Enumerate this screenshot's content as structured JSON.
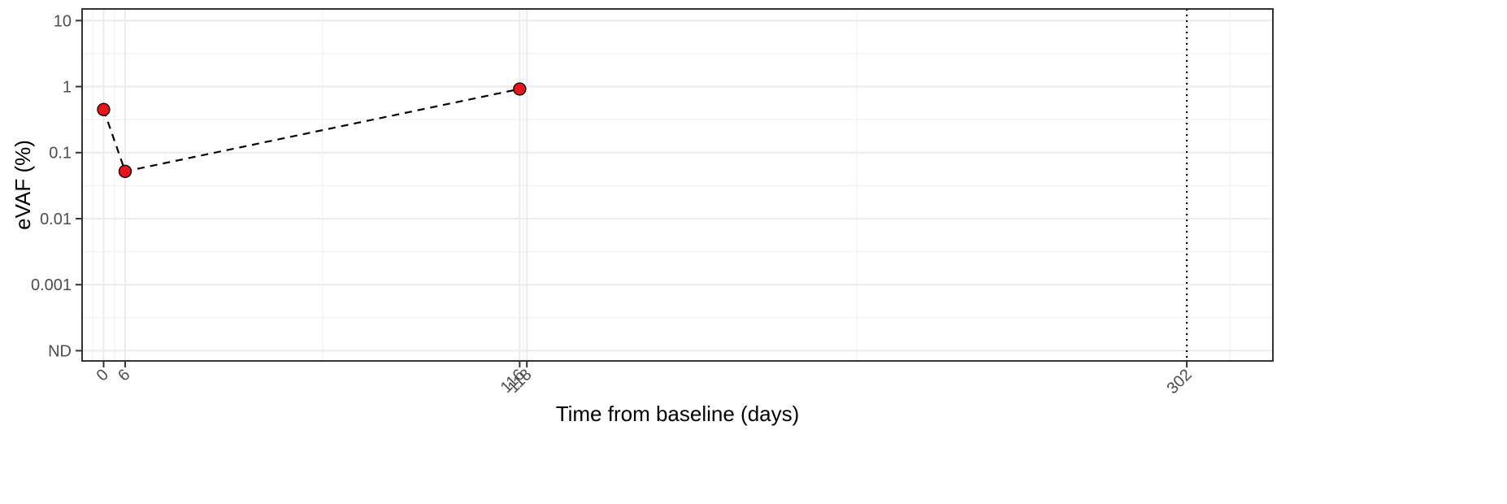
{
  "chart_data": {
    "type": "scatter",
    "xlabel": "Time from baseline (days)",
    "ylabel": "eVAF (%)",
    "x_ticks": [
      0,
      6,
      116,
      118,
      302
    ],
    "y_ticks": [
      {
        "value": 10,
        "label": "10"
      },
      {
        "value": 1,
        "label": "1"
      },
      {
        "value": 0.1,
        "label": "0.1"
      },
      {
        "value": 0.01,
        "label": "0.01"
      },
      {
        "value": 0.001,
        "label": "0.001"
      },
      {
        "value": 0.0001,
        "label": "ND"
      }
    ],
    "y_scale": "log",
    "xlim": [
      -6,
      326
    ],
    "ylim": [
      7e-05,
      15
    ],
    "grid": true,
    "series": [
      {
        "points": [
          {
            "x": 0,
            "y": 0.45
          },
          {
            "x": 6,
            "y": 0.052
          },
          {
            "x": 116,
            "y": 0.92
          }
        ],
        "line_style": "dashed",
        "marker_color": "#e8141b"
      }
    ],
    "vertical_reference": {
      "x": 302,
      "style": "dotted"
    }
  }
}
